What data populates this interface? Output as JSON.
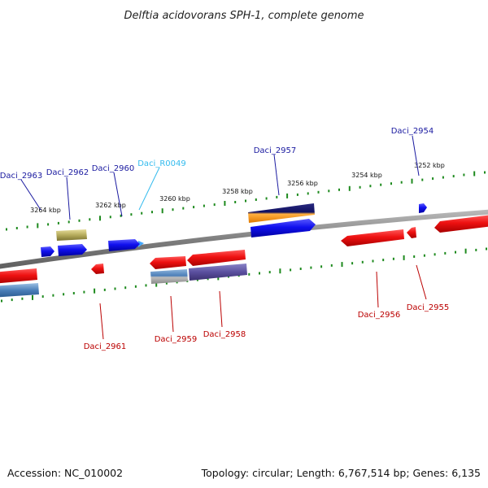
{
  "title": "Delftia acidovorans SPH-1, complete genome",
  "footer": {
    "accession": "Accession: NC_010002",
    "summary": "Topology: circular; Length: 6,767,514 bp; Genes: 6,135"
  },
  "scale": {
    "ticks": [
      "3252 kbp",
      "3254 kbp",
      "3256 kbp",
      "3258 kbp",
      "3260 kbp",
      "3262 kbp",
      "3264 kbp"
    ]
  },
  "colors": {
    "forward_gene": "#1010ee",
    "reverse_gene": "#ee1515",
    "rna_label": "#33bbee",
    "forward_label": "#1a1aa0",
    "reverse_label": "#bb0000",
    "scale_dots": "#1e8a1e",
    "backbone": "#8a8a8a"
  },
  "genes_forward": [
    {
      "id": "Daci_2954"
    },
    {
      "id": "Daci_2957"
    },
    {
      "id": "Daci_R0049"
    },
    {
      "id": "Daci_2960"
    },
    {
      "id": "Daci_2962"
    },
    {
      "id": "Daci_2963"
    }
  ],
  "genes_reverse": [
    {
      "id": "Daci_2955"
    },
    {
      "id": "Daci_2956"
    },
    {
      "id": "Daci_2958"
    },
    {
      "id": "Daci_2959"
    },
    {
      "id": "Daci_2961"
    }
  ]
}
